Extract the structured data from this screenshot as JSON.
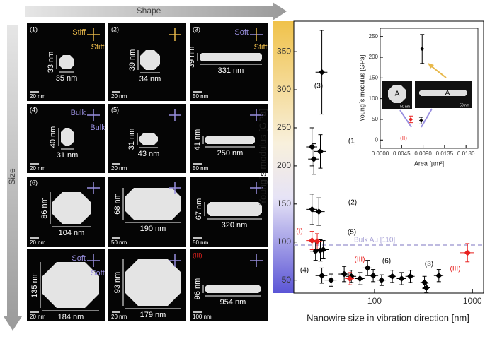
{
  "header": {
    "shape_label": "Shape",
    "size_label": "Size"
  },
  "panels": [
    {
      "number": "(1)",
      "top_note": "Stiff",
      "side_note": "Stiff",
      "height": "33 nm",
      "width": "35 nm",
      "scale": "20 nm"
    },
    {
      "number": "(2)",
      "height": "39 nm",
      "width": "34 nm",
      "scale": "20 nm"
    },
    {
      "number": "(3)",
      "top_note": "Soft",
      "side_note": "Stiff",
      "height": "39 nm",
      "width": "331 nm",
      "scale": "50 nm"
    },
    {
      "number": "(4)",
      "top_note": "Bulk",
      "side_note": "Bulk",
      "height": "40 nm",
      "width": "31 nm",
      "scale": "20 nm"
    },
    {
      "number": "(5)",
      "height": "31 nm",
      "width": "43 nm",
      "scale": "20 nm"
    },
    {
      "height": "41 nm",
      "width": "250 nm",
      "scale": "50 nm"
    },
    {
      "number": "(6)",
      "height": "86 nm",
      "width": "104 nm",
      "scale": "20 nm"
    },
    {
      "height": "68 nm",
      "width": "190 nm",
      "scale": "50 nm"
    },
    {
      "height": "67 nm",
      "width": "320 nm",
      "scale": "50 nm"
    },
    {
      "top_note": "Soft",
      "side_note": "Soft",
      "height": "135 nm",
      "width": "184 nm",
      "scale": "20 nm"
    },
    {
      "height": "93 nm",
      "width": "179 nm",
      "scale": "20 nm"
    },
    {
      "number": "(III)",
      "height": "96 nm",
      "width": "954 nm",
      "scale": "100 nm"
    }
  ],
  "chart_data": [
    {
      "type": "scatter",
      "ylabel": "Young´s modulus [GPa]",
      "xlabel": "Nanowire size in vibration direction [nm]",
      "log_x": true,
      "xlim": [
        15,
        1300
      ],
      "ylim": [
        33,
        390
      ],
      "xticks": [
        100,
        1000
      ],
      "yticks": [
        50,
        100,
        150,
        200,
        250,
        300,
        350
      ],
      "reference_line": {
        "label": "Bulk Au [110]",
        "value": 96,
        "color": "#a9a3d6"
      },
      "annotations": [
        {
          "text": "(3)",
          "color": "#000000"
        },
        {
          "text": "(1)",
          "color": "#000000"
        },
        {
          "text": "(2)",
          "color": "#000000"
        },
        {
          "text": "(I)",
          "color": "#e8201f"
        },
        {
          "text": "(5)",
          "color": "#000000"
        },
        {
          "text": "(4)",
          "color": "#000000"
        },
        {
          "text": "(III)",
          "color": "#e8201f"
        },
        {
          "text": "(6)",
          "color": "#000000"
        },
        {
          "text": "(3)",
          "color": "#000000"
        },
        {
          "text": "(III)",
          "color": "#e8201f"
        }
      ],
      "series": [
        {
          "color": "#000000",
          "x": [
            29,
            23,
            24,
            28,
            23,
            27,
            25,
            28,
            30,
            29,
            36,
            49,
            58,
            71,
            85,
            97,
            118,
            152,
            189,
            232,
            324,
            339,
            454
          ],
          "values": [
            323,
            225,
            209,
            219,
            143,
            140,
            88,
            89,
            90,
            56,
            50,
            58,
            55,
            52,
            66,
            56,
            50,
            55,
            52,
            55,
            47,
            40,
            56
          ],
          "x_errors": [
            4,
            3,
            3,
            4,
            3,
            4,
            3,
            4,
            4,
            4,
            5,
            6,
            7,
            8,
            10,
            12,
            12,
            15,
            20,
            25,
            30,
            30,
            50
          ],
          "errors": [
            55,
            25,
            20,
            22,
            20,
            18,
            12,
            14,
            12,
            10,
            8,
            10,
            8,
            8,
            10,
            8,
            7,
            8,
            8,
            8,
            8,
            6,
            8
          ]
        },
        {
          "color": "#e8201f",
          "x": [
            23,
            26,
            56,
            890
          ],
          "values": [
            102,
            101,
            52,
            86
          ],
          "x_errors": [
            3,
            3,
            6,
            150
          ],
          "errors": [
            12,
            10,
            8,
            12
          ]
        }
      ]
    },
    {
      "type": "scatter",
      "ylabel": "Young´s modulus [GPa]",
      "xlabel": "Area [µm²]",
      "xlim": [
        0,
        0.0205
      ],
      "ylim": [
        -20,
        270
      ],
      "xticks": [
        {
          "value": 0,
          "label": "0.0000"
        },
        0.0045,
        {
          "value": 0.009,
          "label": "0.0090"
        },
        0.0135,
        {
          "value": 0.018,
          "label": "0.0180"
        }
      ],
      "yticks": [
        0,
        50,
        100,
        150,
        200,
        250
      ],
      "thumbnails": [
        {
          "label": "A",
          "scale": "50 nm"
        },
        {
          "label": "A",
          "scale": "50 nm"
        }
      ],
      "annotation": {
        "text": "(II)",
        "color": "#e8201f"
      },
      "series": [
        {
          "color": "#000000",
          "x": [
            0.0088,
            0.0086
          ],
          "values": [
            220,
            47
          ],
          "errors": [
            35,
            8
          ]
        },
        {
          "color": "#e8201f",
          "x": [
            0.0064
          ],
          "values": [
            50
          ],
          "errors": [
            8
          ]
        }
      ]
    }
  ]
}
